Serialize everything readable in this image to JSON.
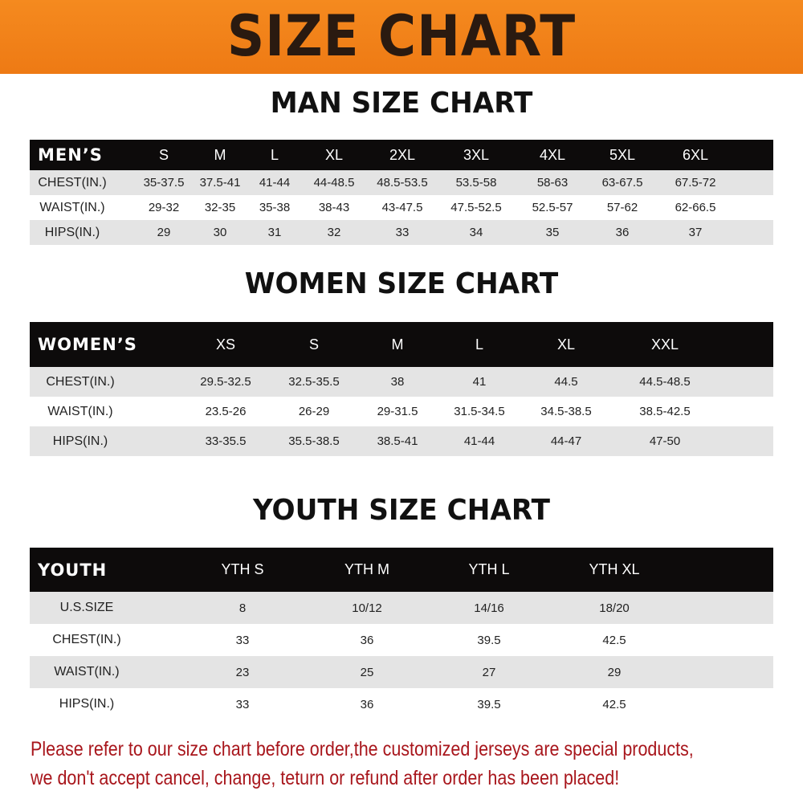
{
  "banner": {
    "title": "SIZE CHART",
    "color": "#f08019"
  },
  "men": {
    "title": "MAN SIZE CHART",
    "header": [
      "MEN’S",
      "S",
      "M",
      "L",
      "XL",
      "2XL",
      "3XL",
      "4XL",
      "5XL",
      "6XL"
    ],
    "rows": [
      [
        "CHEST(IN.)",
        "35-37.5",
        "37.5-41",
        "41-44",
        "44-48.5",
        "48.5-53.5",
        "53.5-58",
        "58-63",
        "63-67.5",
        "67.5-72"
      ],
      [
        "WAIST(IN.)",
        "29-32",
        "32-35",
        "35-38",
        "38-43",
        "43-47.5",
        "47.5-52.5",
        "52.5-57",
        "57-62",
        "62-66.5"
      ],
      [
        "HIPS(IN.)",
        "29",
        "30",
        "31",
        "32",
        "33",
        "34",
        "35",
        "36",
        "37"
      ]
    ]
  },
  "women": {
    "title": "WOMEN SIZE CHART",
    "header": [
      "WOMEN’S",
      "XS",
      "S",
      "M",
      "L",
      "XL",
      "XXL"
    ],
    "rows": [
      [
        "CHEST(IN.)",
        "29.5-32.5",
        "32.5-35.5",
        "38",
        "41",
        "44.5",
        "44.5-48.5"
      ],
      [
        "WAIST(IN.)",
        "23.5-26",
        "26-29",
        "29-31.5",
        "31.5-34.5",
        "34.5-38.5",
        "38.5-42.5"
      ],
      [
        "HIPS(IN.)",
        "33-35.5",
        "35.5-38.5",
        "38.5-41",
        "41-44",
        "44-47",
        "47-50"
      ]
    ]
  },
  "youth": {
    "title": "YOUTH SIZE CHART",
    "header": [
      "YOUTH",
      "YTH S",
      "YTH M",
      "YTH L",
      "YTH XL"
    ],
    "rows": [
      [
        "U.S.SIZE",
        "8",
        "10/12",
        "14/16",
        "18/20"
      ],
      [
        "CHEST(IN.)",
        "33",
        "36",
        "39.5",
        "42.5"
      ],
      [
        "WAIST(IN.)",
        "23",
        "25",
        "27",
        "29"
      ],
      [
        "HIPS(IN.)",
        "33",
        "36",
        "39.5",
        "42.5"
      ]
    ]
  },
  "footer": {
    "line1": "Please refer to our size chart before order,the customized jerseys are special products,",
    "line2": "we don't accept cancel, change, teturn or refund after order has been placed!",
    "color": "#a8161c"
  }
}
